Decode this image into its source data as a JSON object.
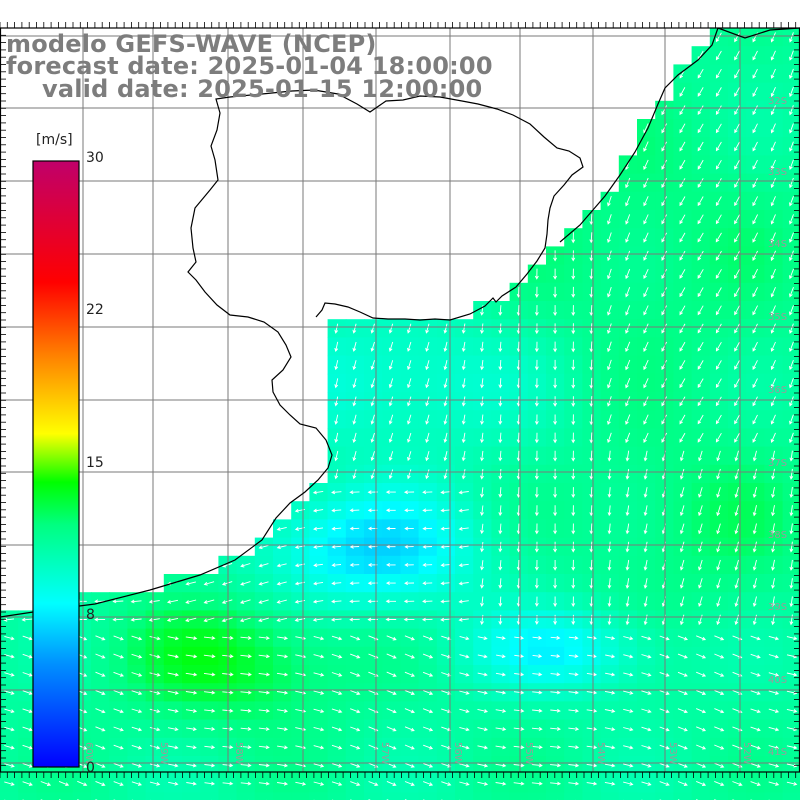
{
  "title": {
    "model": "modelo GEFS-WAVE (NCEP)",
    "forecast": "forecast date: 2025-01-04 18:00:00",
    "valid": "valid date: 2025-01-15 12:00:00"
  },
  "colorbar": {
    "unit": "[m/s]",
    "min": 0,
    "max": 30,
    "ticks": [
      "30",
      "22",
      "15",
      "8",
      "0"
    ],
    "tick_values": [
      30,
      22,
      15,
      8,
      0
    ],
    "colors": [
      "#0000ff",
      "#00c8ff",
      "#00ffff",
      "#00ff00",
      "#ffff00",
      "#ff8000",
      "#ff0000",
      "#c0006a"
    ]
  },
  "latitude_labels": [
    "32S",
    "33S",
    "34S",
    "35S",
    "36S",
    "37S",
    "38S",
    "39S",
    "40S",
    "41S"
  ],
  "longitude_labels": [
    "60W",
    "59W",
    "58W",
    "57W",
    "56W",
    "55W",
    "54W",
    "53W",
    "52W",
    "51W"
  ],
  "land_color": "#ffffff",
  "grid_color": "#7a7a7a",
  "arrow_color": "#ffffff"
}
